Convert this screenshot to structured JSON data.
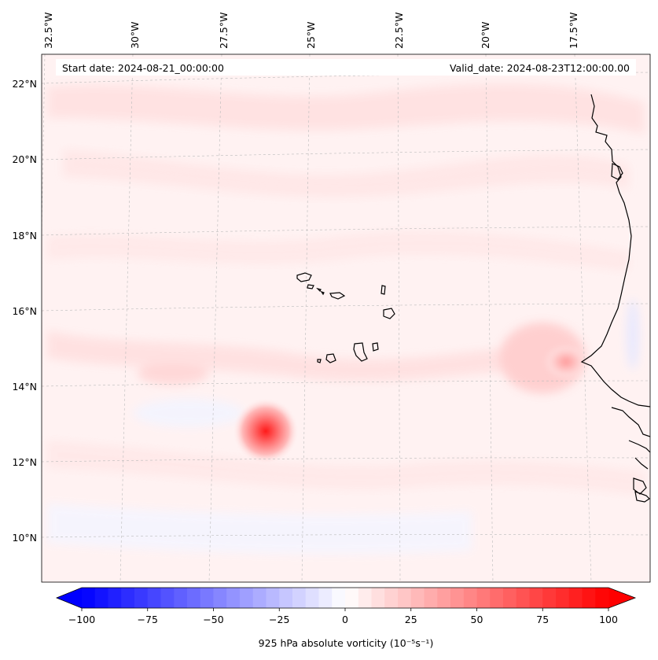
{
  "map": {
    "start_label": "Start date: 2024-08-21_00:00:00",
    "valid_label": "Valid_date: 2024-08-23T12:00:00.00",
    "lon_labels": [
      "32.5°W",
      "30°W",
      "27.5°W",
      "25°W",
      "22.5°W",
      "20°W",
      "17.5°W"
    ],
    "lat_labels": [
      "22°N",
      "20°N",
      "18°N",
      "16°N",
      "14°N",
      "12°N",
      "10°N"
    ]
  },
  "colorbar": {
    "title": "925 hPa absolute vorticity (10⁻⁵s⁻¹)",
    "ticks": [
      "−100",
      "−75",
      "−50",
      "−25",
      "0",
      "25",
      "50",
      "75",
      "100"
    ],
    "min": -100,
    "max": 100,
    "step": 5,
    "color_min": "#0000ff",
    "color_mid": "#ffffff",
    "color_max": "#ff0000"
  },
  "features": {
    "vortex_max": "#ff1a1a",
    "coast_color": "#000000"
  }
}
